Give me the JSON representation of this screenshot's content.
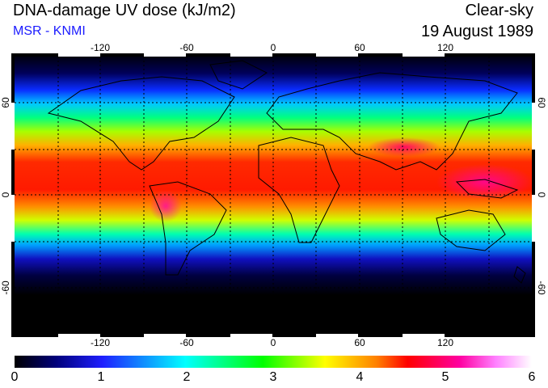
{
  "header": {
    "title": "DNA-damage UV dose (kJ/m2)",
    "subtitle": "MSR - KNMI",
    "condition": "Clear-sky",
    "date": "19 August 1989"
  },
  "map": {
    "lon_ticks": [
      "-120",
      "-60",
      "0",
      "60",
      "120"
    ],
    "lat_ticks_left": [
      "60",
      "0",
      "-60"
    ],
    "lat_ticks_right": [
      "60",
      "0",
      "-60"
    ]
  },
  "colorbar": {
    "min": 0,
    "max": 6,
    "labels": [
      "0",
      "1",
      "2",
      "3",
      "4",
      "5",
      "6"
    ],
    "colors": [
      "#000000",
      "#1f1fff",
      "#00ffff",
      "#00ff00",
      "#ffff00",
      "#ff0000",
      "#ff00ff",
      "#ffffff"
    ]
  }
}
